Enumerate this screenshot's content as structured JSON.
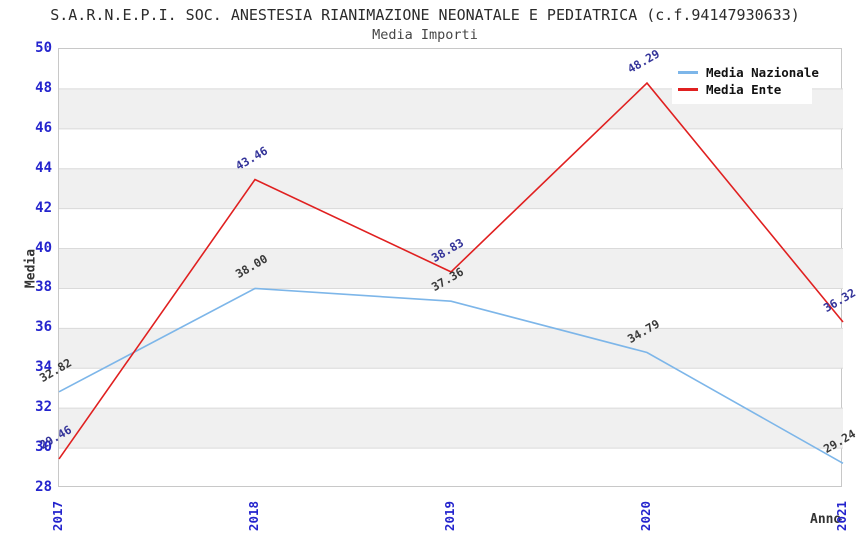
{
  "chart_data": {
    "type": "line",
    "title": "S.A.R.N.E.P.I. SOC. ANESTESIA RIANIMAZIONE NEONATALE E PEDIATRICA (c.f.94147930633)",
    "subtitle": "Media Importi",
    "xlabel": "Anno",
    "ylabel": "Media",
    "x_categories": [
      "2017",
      "2018",
      "2019",
      "2020",
      "2021"
    ],
    "ylim": [
      28,
      50
    ],
    "ytick_step": 2,
    "yticks": [
      28,
      30,
      32,
      34,
      36,
      38,
      40,
      42,
      44,
      46,
      48,
      50
    ],
    "grid": "horizontal gridlines with alternating shaded bands",
    "legend_position": "top-right",
    "series": [
      {
        "name": "Media Nazionale",
        "color": "#7db6e9",
        "label_color": "#3a3a3a",
        "values": [
          32.82,
          38.0,
          37.36,
          34.79,
          29.24
        ]
      },
      {
        "name": "Media Ente",
        "color": "#e02020",
        "label_color": "#333399",
        "values": [
          29.46,
          43.46,
          38.83,
          48.29,
          36.32
        ]
      }
    ],
    "style": {
      "band_color": "#f0f0f0",
      "gridline_color": "#dadada",
      "plot_border_color": "#c8c8c8",
      "tick_label_color": "#2424cd",
      "axis_title_color": "#333333",
      "title_color": "#2b2b2b",
      "subtitle_color": "#454545",
      "background": "#ffffff"
    }
  }
}
